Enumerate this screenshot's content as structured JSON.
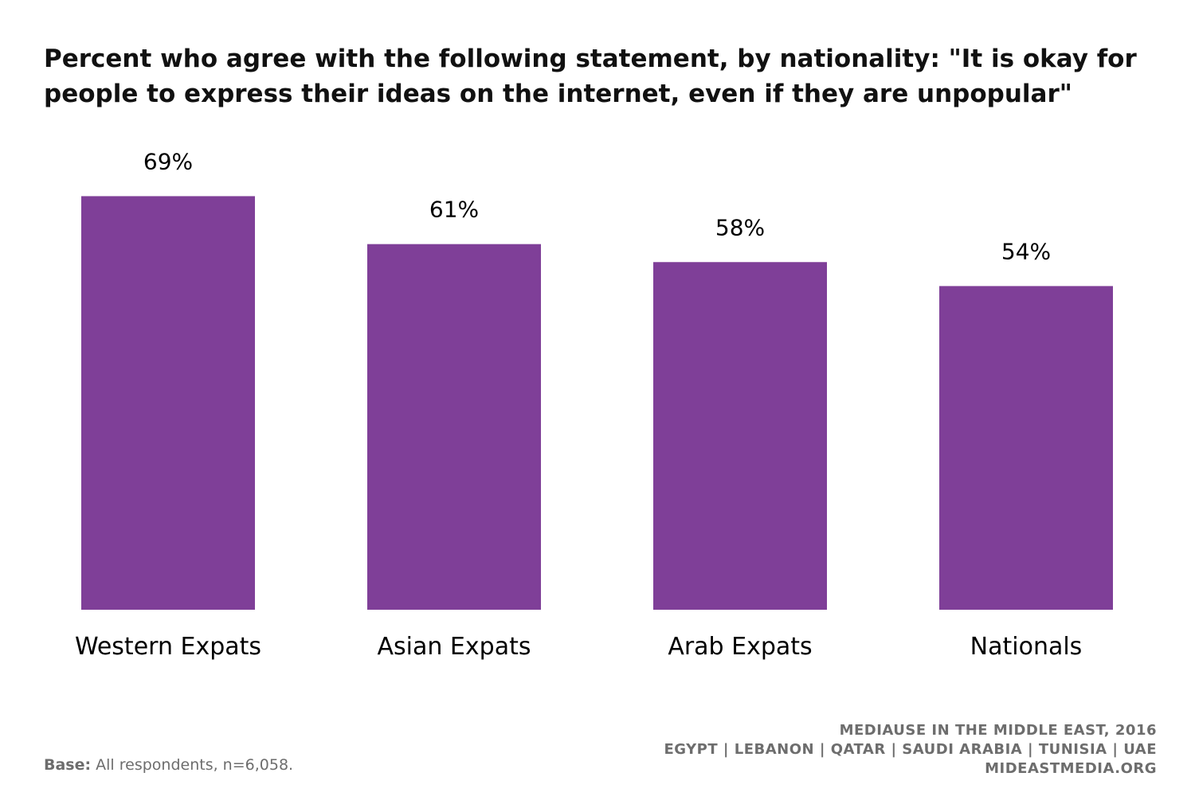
{
  "chart_data": {
    "type": "bar",
    "title": "Percent who agree with the following statement, by nationality: \"It is okay for people to express their ideas on the internet, even if they are unpopular\"",
    "categories": [
      "Western Expats",
      "Asian Expats",
      "Arab Expats",
      "Nationals"
    ],
    "values": [
      69,
      61,
      58,
      54
    ],
    "value_labels": [
      "69%",
      "61%",
      "58%",
      "54%"
    ],
    "xlabel": "",
    "ylabel": "",
    "ylim": [
      0,
      100
    ],
    "grid": false,
    "legend": "none",
    "bar_color": "#7f3f98"
  },
  "footer": {
    "base_label": "Base:",
    "base_text": "All respondents, n=6,058.",
    "source_line1": "MEDIAUSE IN THE MIDDLE EAST, 2016",
    "source_line2": "EGYPT | LEBANON | QATAR | SAUDI ARABIA | TUNISIA | UAE",
    "source_line3": "MIDEASTMEDIA.ORG"
  }
}
